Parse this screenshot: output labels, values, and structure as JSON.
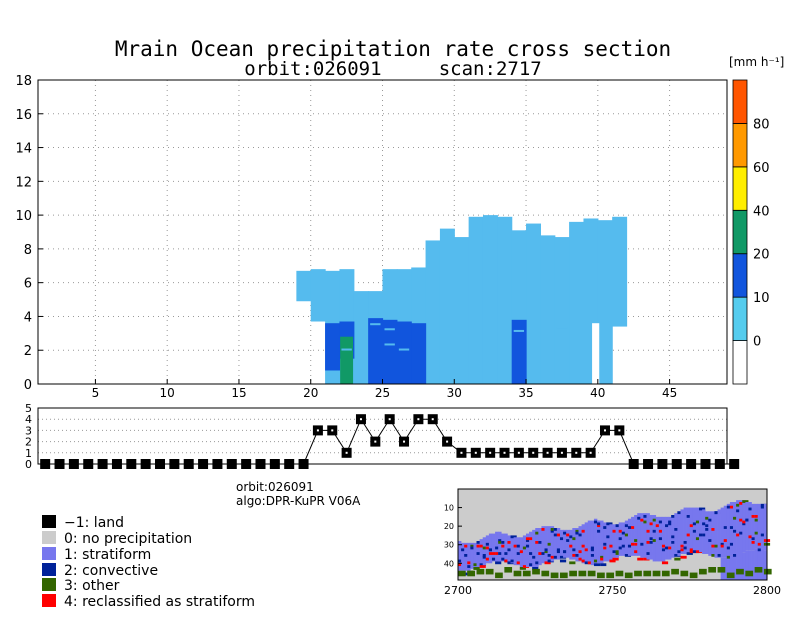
{
  "title_line1": "Mrain Ocean precipitation rate cross section",
  "title_line2": "orbit:026091     scan:2717",
  "colors": {
    "light_blue": "#55bbee",
    "mid_blue": "#1155dd",
    "dark_blue": "#0033aa",
    "green": "#119966",
    "white": "#ffffff",
    "strat": "#7777ee",
    "conv": "#002299",
    "other": "#336600",
    "recl": "#ff0000",
    "land": "#000000",
    "noprecip": "#cccccc"
  },
  "chart_data": [
    {
      "type": "heatmap",
      "name": "precipitation cross section",
      "title": "Mrain Ocean precipitation rate cross section",
      "xlim": [
        1,
        49
      ],
      "ylim": [
        0,
        18
      ],
      "x_ticks": [
        5,
        10,
        15,
        20,
        25,
        30,
        35,
        40,
        45
      ],
      "y_ticks": [
        0,
        2,
        4,
        6,
        8,
        10,
        12,
        14,
        16,
        18
      ],
      "grid": true,
      "colorbar": {
        "label": "[mm h⁻¹]",
        "ticks": [
          "0",
          "10",
          "20",
          "40",
          "60",
          "80"
        ],
        "bands": [
          "#ffffff",
          "#55ccee",
          "#1155dd",
          "#119966",
          "#ffee00",
          "#ff9900",
          "#ff5500"
        ]
      },
      "column_tops": [
        [
          19,
          6.7
        ],
        [
          20,
          6.8
        ],
        [
          21,
          6.7
        ],
        [
          22,
          6.8
        ],
        [
          23,
          5.5
        ],
        [
          24,
          5.5
        ],
        [
          25,
          6.8
        ],
        [
          26,
          6.8
        ],
        [
          27,
          6.9
        ],
        [
          28,
          8.5
        ],
        [
          29,
          9.2
        ],
        [
          30,
          8.7
        ],
        [
          31,
          9.9
        ],
        [
          32,
          10
        ],
        [
          33,
          9.9
        ],
        [
          34,
          9.1
        ],
        [
          35,
          9.5
        ],
        [
          36,
          8.8
        ],
        [
          37,
          8.7
        ],
        [
          38,
          9.6
        ],
        [
          39,
          9.8
        ],
        [
          40,
          9.7
        ],
        [
          41,
          9.9
        ]
      ],
      "column_bottoms": [
        [
          19,
          4.9
        ],
        [
          20,
          3.7
        ],
        [
          21,
          0
        ],
        [
          22,
          0
        ],
        [
          23,
          0
        ],
        [
          24,
          0
        ],
        [
          25,
          0
        ],
        [
          26,
          0
        ],
        [
          27,
          0
        ],
        [
          28,
          0
        ],
        [
          29,
          0
        ],
        [
          30,
          0
        ],
        [
          31,
          0
        ],
        [
          32,
          0
        ],
        [
          33,
          0
        ],
        [
          34,
          0
        ],
        [
          35,
          0
        ],
        [
          36,
          0
        ],
        [
          37,
          0
        ],
        [
          38,
          0
        ],
        [
          39,
          0
        ],
        [
          40,
          0
        ],
        [
          41,
          3.4
        ]
      ],
      "heavy_segments": [
        [
          21,
          0.8,
          3.6
        ],
        [
          22,
          1.5,
          3.7
        ],
        [
          24,
          0,
          3.9
        ],
        [
          25,
          0,
          3.8
        ],
        [
          26,
          0,
          3.7
        ],
        [
          27,
          0,
          3.6
        ],
        [
          34,
          0,
          3.8
        ]
      ],
      "green_segments": [
        [
          22,
          0,
          2.8
        ]
      ]
    },
    {
      "type": "line",
      "name": "precipitation type flag",
      "ylim": [
        0,
        5
      ],
      "y_ticks": [
        0,
        1,
        2,
        3,
        4,
        5
      ],
      "x": [
        1,
        2,
        3,
        4,
        5,
        6,
        7,
        8,
        9,
        10,
        11,
        12,
        13,
        14,
        15,
        16,
        17,
        18,
        19,
        20,
        21,
        22,
        23,
        24,
        25,
        26,
        27,
        28,
        29,
        30,
        31,
        32,
        33,
        34,
        35,
        36,
        37,
        38,
        39,
        40,
        41,
        42,
        43,
        44,
        45,
        46,
        47,
        48,
        49
      ],
      "values": [
        0,
        0,
        0,
        0,
        0,
        0,
        0,
        0,
        0,
        0,
        0,
        0,
        0,
        0,
        0,
        0,
        0,
        0,
        0,
        3,
        3,
        1,
        4,
        2,
        4,
        2,
        4,
        4,
        2,
        1,
        1,
        1,
        1,
        1,
        1,
        1,
        1,
        1,
        1,
        3,
        3,
        0,
        0,
        0,
        0,
        0,
        0,
        0,
        0
      ]
    },
    {
      "type": "heatmap",
      "name": "swath map",
      "x_ticks": [
        "2700",
        "2750",
        "2800"
      ],
      "y_ticks": [
        "10",
        "20",
        "30",
        "40"
      ]
    }
  ],
  "info": {
    "orbit": "orbit:026091",
    "algo": "algo:DPR-KuPR V06A"
  },
  "legend": [
    {
      "label": "−1: land",
      "color": "#000000"
    },
    {
      "label": "0: no precipitation",
      "color": "#cccccc"
    },
    {
      "label": "1: stratiform",
      "color": "#7777ee"
    },
    {
      "label": "2: convective",
      "color": "#002299"
    },
    {
      "label": "3: other",
      "color": "#336600"
    },
    {
      "label": "4: reclassified as stratiform",
      "color": "#ff0000"
    }
  ]
}
